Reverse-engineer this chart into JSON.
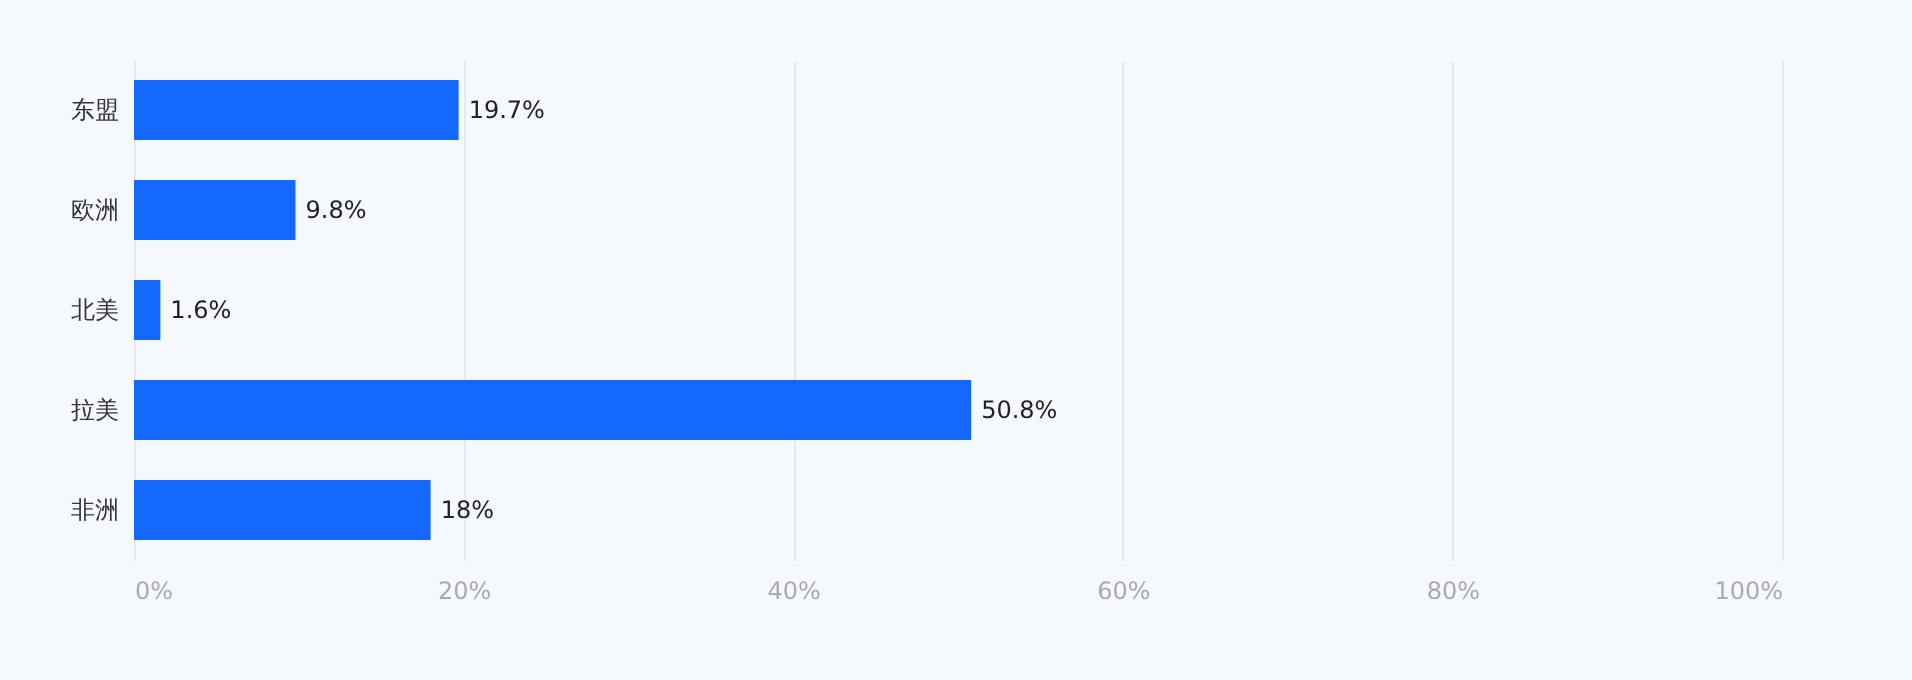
{
  "chart_data": {
    "type": "bar",
    "orientation": "horizontal",
    "categories": [
      "东盟",
      "欧洲",
      "北美",
      "拉美",
      "非洲"
    ],
    "series": [
      {
        "color": "#1468ff",
        "values": [
          19.7,
          9.8,
          1.6,
          50.8,
          18
        ],
        "value_labels": [
          "19.7%",
          "9.8%",
          "1.6%",
          "50.8%",
          "18%"
        ]
      }
    ],
    "xlim": [
      0,
      100
    ],
    "xticks": [
      {
        "value": 0,
        "label": "0%"
      },
      {
        "value": 20,
        "label": "20%"
      },
      {
        "value": 40,
        "label": "40%"
      },
      {
        "value": 60,
        "label": "60%"
      },
      {
        "value": 80,
        "label": "80%"
      },
      {
        "value": 100,
        "label": "100%"
      }
    ],
    "grid": "x"
  }
}
